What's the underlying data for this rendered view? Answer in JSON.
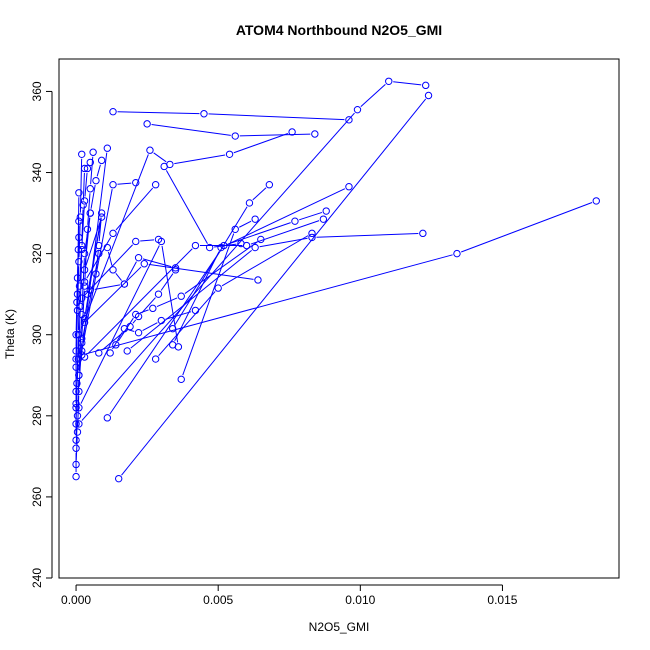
{
  "chart_data": {
    "type": "line",
    "title": "ATOM4 Northbound N2O5_GMI",
    "xlabel": "N2O5_GMI",
    "ylabel": "Theta (K)",
    "xlim": [
      -0.0006,
      0.0191
    ],
    "ylim": [
      240,
      368
    ],
    "xticks": [
      {
        "value": 0.0,
        "label": "0.000"
      },
      {
        "value": 0.005,
        "label": "0.005"
      },
      {
        "value": 0.01,
        "label": "0.010"
      },
      {
        "value": 0.015,
        "label": "0.015"
      }
    ],
    "yticks": [
      {
        "value": 240,
        "label": "240"
      },
      {
        "value": 260,
        "label": "260"
      },
      {
        "value": 280,
        "label": "280"
      },
      {
        "value": 300,
        "label": "300"
      },
      {
        "value": 320,
        "label": "320"
      },
      {
        "value": 340,
        "label": "340"
      },
      {
        "value": 360,
        "label": "360"
      }
    ],
    "grid": false,
    "legend": "none",
    "color": "#0000ff",
    "marker": "open-circle",
    "series": [
      {
        "x": [
          0.0,
          0.0,
          5e-05,
          0.0001,
          0.0002,
          0.0003,
          0.0005,
          0.0007,
          0.0009
        ],
        "y": [
          265,
          272,
          280,
          290,
          305,
          320,
          330,
          338,
          343
        ]
      },
      {
        "x": [
          0.0,
          5e-05,
          0.0001,
          0.0002,
          0.0003,
          0.0004,
          0.0005,
          0.0006
        ],
        "y": [
          268,
          276,
          286,
          299,
          312,
          326,
          336,
          345
        ]
      },
      {
        "x": [
          0.0,
          0.0,
          8e-05,
          0.00015,
          0.0002,
          0.0003,
          0.0004,
          0.0005
        ],
        "y": [
          274,
          283,
          294,
          307,
          321,
          333,
          341,
          342.5
        ]
      },
      {
        "x": [
          0.0,
          3e-05,
          8e-05,
          0.00012,
          0.0002,
          0.00025,
          0.0003
        ],
        "y": [
          278,
          288,
          300,
          312,
          322,
          332,
          341
        ]
      },
      {
        "x": [
          0.0,
          0.0,
          5e-05,
          0.0001,
          0.00015,
          0.0002
        ],
        "y": [
          282,
          292,
          306,
          318,
          329,
          344.5
        ]
      },
      {
        "x": [
          0.0,
          0.0,
          5e-05,
          0.0001
        ],
        "y": [
          286,
          296,
          310,
          335
        ]
      },
      {
        "x": [
          0.0,
          5e-05,
          0.0001
        ],
        "y": [
          300,
          314,
          324
        ]
      },
      {
        "x": [
          0.0,
          3e-05,
          8e-05,
          0.0001
        ],
        "y": [
          294,
          308,
          321,
          328
        ]
      },
      {
        "x": [
          0.0001,
          0.0011
        ],
        "y": [
          290,
          346
        ]
      },
      {
        "x": [
          0.0002,
          0.0013,
          0.0021
        ],
        "y": [
          296,
          337,
          337.5
        ]
      },
      {
        "x": [
          0.0004,
          0.0009,
          0.0003,
          0.0005
        ],
        "y": [
          310,
          329,
          316,
          330
        ]
      },
      {
        "x": [
          0.0003,
          0.0009,
          0.0008,
          0.0007
        ],
        "y": [
          304,
          330,
          322,
          315
        ]
      },
      {
        "x": [
          0.0002,
          0.0008,
          0.0011,
          0.0013,
          0.0017
        ],
        "y": [
          298,
          320,
          321.5,
          316,
          312.5
        ]
      },
      {
        "x": [
          0.0005,
          0.0017,
          0.0022,
          0.0035
        ],
        "y": [
          311,
          312.5,
          319,
          316.5
        ]
      },
      {
        "x": [
          0.0003,
          0.0013,
          0.0028
        ],
        "y": [
          313,
          325,
          337
        ]
      },
      {
        "x": [
          0.0002,
          0.0021,
          0.0029
        ],
        "y": [
          309,
          323,
          323.5
        ]
      },
      {
        "x": [
          0.0003,
          0.0024,
          0.0064
        ],
        "y": [
          303,
          317.5,
          313.5
        ]
      },
      {
        "x": [
          0.0001,
          0.0026,
          0.0033,
          0.0054,
          0.0076
        ],
        "y": [
          300,
          345.5,
          342,
          344.5,
          350
        ]
      },
      {
        "x": [
          0.0013,
          0.0045,
          0.0096
        ],
        "y": [
          355,
          354.5,
          353
        ]
      },
      {
        "x": [
          0.0025,
          0.0056,
          0.0084
        ],
        "y": [
          352,
          349,
          349.5
        ]
      },
      {
        "x": [
          0.0001,
          0.0099,
          0.011,
          0.0123
        ],
        "y": [
          278,
          355.5,
          362.5,
          361.5
        ]
      },
      {
        "x": [
          0.0015,
          0.0124
        ],
        "y": [
          264.5,
          359
        ]
      },
      {
        "x": [
          0.0034,
          0.0061,
          0.0068
        ],
        "y": [
          301.5,
          332.5,
          337
        ]
      },
      {
        "x": [
          0.0037,
          0.0056,
          0.0063
        ],
        "y": [
          289,
          326,
          328.5
        ]
      },
      {
        "x": [
          0.0028,
          0.005,
          0.0083
        ],
        "y": [
          294,
          311.5,
          325
        ]
      },
      {
        "x": [
          0.0034,
          0.0051,
          0.0096
        ],
        "y": [
          297.5,
          321.5,
          336.5
        ]
      },
      {
        "x": [
          0.0018,
          0.0063,
          0.0083,
          0.0122
        ],
        "y": [
          296,
          321.5,
          324,
          325
        ]
      },
      {
        "x": [
          0.0011,
          0.0052,
          0.0077,
          0.0088
        ],
        "y": [
          279.5,
          322,
          328,
          330.5
        ]
      },
      {
        "x": [
          0.0003,
          0.0042,
          0.006,
          0.0087
        ],
        "y": [
          294.5,
          322,
          322,
          328.5
        ]
      },
      {
        "x": [
          0.0002,
          0.0134,
          0.0183
        ],
        "y": [
          295,
          320,
          333
        ]
      },
      {
        "x": [
          0.0014,
          0.0021,
          0.0027,
          0.0037,
          0.0065
        ],
        "y": [
          297.5,
          305,
          306.5,
          309.5,
          323.5
        ]
      },
      {
        "x": [
          0.0008,
          0.0019,
          0.0022,
          0.0029,
          0.0035
        ],
        "y": [
          295.5,
          302,
          304.5,
          310,
          316
        ]
      },
      {
        "x": [
          0.0012,
          0.0017,
          0.0022,
          0.003,
          0.0042
        ],
        "y": [
          295.5,
          301.5,
          300.5,
          303.5,
          306
        ]
      },
      {
        "x": [
          0.0031,
          0.0047,
          0.0058
        ],
        "y": [
          341.5,
          321.5,
          322.5
        ]
      },
      {
        "x": [
          0.0001,
          0.003,
          0.0036
        ],
        "y": [
          282,
          323,
          297
        ]
      }
    ]
  }
}
